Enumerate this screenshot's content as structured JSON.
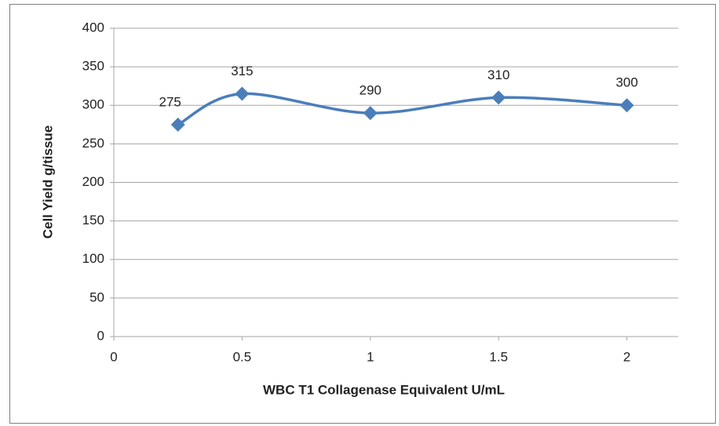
{
  "chart_data": {
    "type": "line",
    "x_label": "WBC T1 Collagenase Equivalent U/mL",
    "y_label": "Cell Yield g/tissue",
    "x": [
      0.25,
      0.5,
      1,
      1.5,
      2
    ],
    "series": [
      {
        "name": "Cell Yield",
        "color": "#4a7ebb",
        "values": [
          275,
          315,
          290,
          310,
          300
        ]
      }
    ],
    "xlim": [
      0,
      2.2
    ],
    "xticks": [
      0,
      0.5,
      1,
      1.5,
      2
    ],
    "ylim": [
      0,
      400
    ],
    "yticks": [
      0,
      50,
      100,
      150,
      200,
      250,
      300,
      350,
      400
    ],
    "grid": true,
    "smooth": true,
    "data_labels": true
  }
}
